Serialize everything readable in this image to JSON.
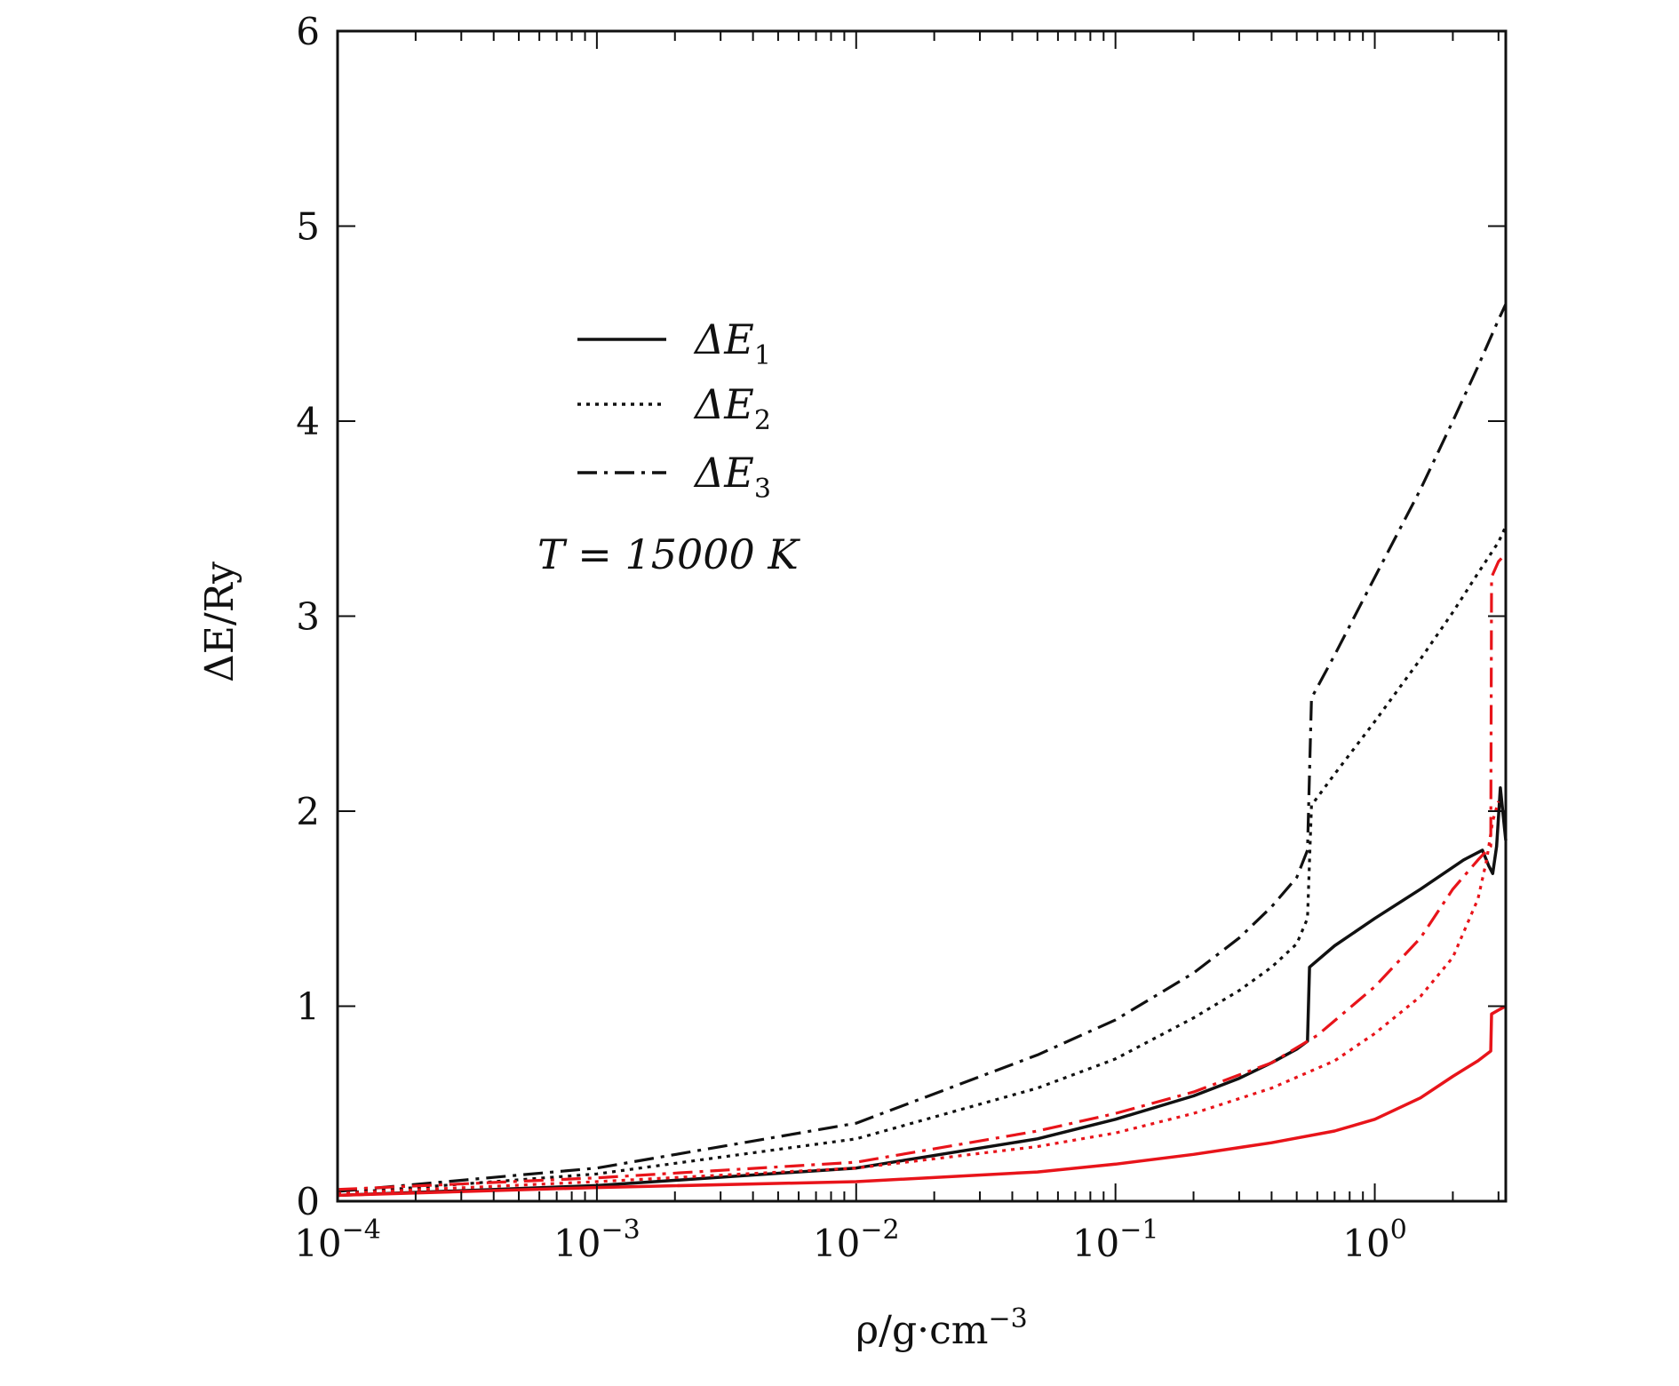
{
  "chart_data": {
    "type": "line",
    "x_scale": "log",
    "xlim": [
      0.0001,
      3.2
    ],
    "ylim": [
      0,
      6
    ],
    "grid": false,
    "legend_position": "upper-left",
    "xlabel": {
      "main": "ρ/g·cm",
      "sup": "−3"
    },
    "ylabel": "ΔE/Ry",
    "x_tick_labels": [
      {
        "value": 0.0001,
        "base": "10",
        "exp": "−4"
      },
      {
        "value": 0.001,
        "base": "10",
        "exp": "−3"
      },
      {
        "value": 0.01,
        "base": "10",
        "exp": "−2"
      },
      {
        "value": 0.1,
        "base": "10",
        "exp": "−1"
      },
      {
        "value": 1,
        "base": "10",
        "exp": "0"
      }
    ],
    "y_ticks": [
      0,
      1,
      2,
      3,
      4,
      5,
      6
    ],
    "annotation": {
      "text": "T = 15000 K"
    },
    "legend": [
      {
        "base": "ΔE",
        "sub": "1",
        "style": "solid"
      },
      {
        "base": "ΔE",
        "sub": "2",
        "style": "dotted"
      },
      {
        "base": "ΔE",
        "sub": "3",
        "style": "dashdot"
      }
    ],
    "colors": {
      "black": "#111111",
      "red": "#e8141a"
    },
    "series": [
      {
        "color": "black",
        "style": "solid",
        "x": [
          0.0001,
          0.001,
          0.01,
          0.05,
          0.1,
          0.2,
          0.3,
          0.4,
          0.5,
          0.55,
          0.56,
          0.7,
          1.0,
          1.5,
          2.2,
          2.6,
          2.75,
          2.85,
          2.95,
          3.05,
          3.2
        ],
        "y": [
          0.03,
          0.08,
          0.17,
          0.32,
          0.42,
          0.54,
          0.63,
          0.71,
          0.78,
          0.82,
          1.2,
          1.31,
          1.45,
          1.6,
          1.75,
          1.8,
          1.72,
          1.68,
          1.82,
          2.12,
          1.85
        ]
      },
      {
        "color": "black",
        "style": "dotted",
        "x": [
          0.0001,
          0.001,
          0.01,
          0.05,
          0.1,
          0.2,
          0.3,
          0.4,
          0.5,
          0.55,
          0.57,
          0.7,
          1.0,
          1.5,
          2.0,
          2.5,
          3.0,
          3.2
        ],
        "y": [
          0.04,
          0.14,
          0.32,
          0.58,
          0.73,
          0.94,
          1.08,
          1.2,
          1.32,
          1.45,
          2.03,
          2.19,
          2.46,
          2.78,
          3.02,
          3.22,
          3.38,
          3.46
        ]
      },
      {
        "color": "black",
        "style": "dashdot",
        "x": [
          0.0001,
          0.001,
          0.01,
          0.05,
          0.1,
          0.2,
          0.3,
          0.4,
          0.5,
          0.55,
          0.57,
          0.7,
          1.0,
          1.5,
          2.0,
          2.5,
          3.0,
          3.2
        ],
        "y": [
          0.05,
          0.17,
          0.4,
          0.75,
          0.93,
          1.17,
          1.35,
          1.51,
          1.66,
          1.8,
          2.58,
          2.8,
          3.2,
          3.65,
          4.0,
          4.28,
          4.52,
          4.6
        ]
      },
      {
        "color": "red",
        "style": "solid",
        "x": [
          0.0001,
          0.001,
          0.01,
          0.05,
          0.1,
          0.2,
          0.4,
          0.7,
          1.0,
          1.5,
          2.0,
          2.5,
          2.8,
          2.82,
          3.0,
          3.2
        ],
        "y": [
          0.03,
          0.07,
          0.1,
          0.15,
          0.19,
          0.24,
          0.3,
          0.36,
          0.42,
          0.53,
          0.64,
          0.72,
          0.77,
          0.96,
          0.98,
          1.0
        ]
      },
      {
        "color": "red",
        "style": "dotted",
        "x": [
          0.0001,
          0.001,
          0.01,
          0.05,
          0.1,
          0.2,
          0.4,
          0.7,
          1.0,
          1.5,
          2.0,
          2.5,
          2.7,
          2.85,
          3.0
        ],
        "y": [
          0.04,
          0.1,
          0.17,
          0.28,
          0.35,
          0.45,
          0.58,
          0.72,
          0.86,
          1.05,
          1.25,
          1.55,
          1.75,
          1.95,
          2.05
        ]
      },
      {
        "color": "red",
        "style": "dashdot",
        "x": [
          0.0001,
          0.001,
          0.01,
          0.05,
          0.1,
          0.2,
          0.4,
          0.6,
          1.0,
          1.5,
          2.0,
          2.5,
          2.8,
          2.82,
          3.0,
          3.2
        ],
        "y": [
          0.06,
          0.12,
          0.2,
          0.36,
          0.45,
          0.56,
          0.71,
          0.85,
          1.1,
          1.35,
          1.6,
          1.75,
          1.82,
          3.2,
          3.28,
          3.32
        ]
      }
    ]
  }
}
